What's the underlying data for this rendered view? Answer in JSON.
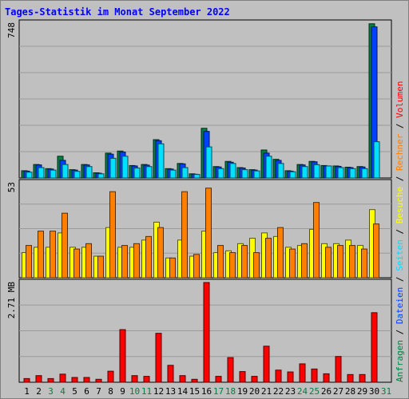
{
  "title": "Tages-Statistik im Monat September 2022",
  "colors": {
    "frame_bg": "#c0c0c0",
    "title": "#0000ff",
    "anfragen": "#008040",
    "dateien": "#0040ff",
    "seiten": "#00e0ff",
    "besuche": "#ffff00",
    "rechner": "#ff8000",
    "volumen": "#ff0000",
    "weekend_label": "#008040",
    "weekday_label": "#000000"
  },
  "chart_data": [
    {
      "type": "bar",
      "panel": "hits",
      "ymax_label": "748",
      "ylim": [
        0,
        748
      ],
      "x": [
        "1",
        "2",
        "3",
        "4",
        "5",
        "6",
        "7",
        "8",
        "9",
        "10",
        "11",
        "12",
        "13",
        "14",
        "15",
        "16",
        "17",
        "18",
        "19",
        "20",
        "21",
        "22",
        "23",
        "24",
        "25",
        "26",
        "27",
        "28",
        "29",
        "30",
        "31"
      ],
      "series": [
        {
          "name": "Anfragen",
          "color": "#008040",
          "values": [
            35,
            65,
            45,
            105,
            40,
            65,
            25,
            120,
            130,
            60,
            65,
            185,
            45,
            70,
            20,
            240,
            55,
            80,
            50,
            40,
            135,
            90,
            35,
            65,
            80,
            60,
            58,
            52,
            55,
            745,
            null
          ]
        },
        {
          "name": "Dateien",
          "color": "#0040ff",
          "values": [
            33,
            63,
            43,
            85,
            38,
            63,
            23,
            115,
            125,
            58,
            62,
            180,
            43,
            68,
            18,
            225,
            53,
            76,
            48,
            38,
            120,
            85,
            33,
            63,
            78,
            58,
            56,
            50,
            53,
            730,
            null
          ]
        },
        {
          "name": "Seiten",
          "color": "#00e0ff",
          "values": [
            28,
            50,
            38,
            65,
            32,
            55,
            20,
            95,
            105,
            48,
            55,
            165,
            38,
            50,
            17,
            150,
            45,
            70,
            40,
            34,
            105,
            70,
            30,
            55,
            64,
            58,
            50,
            45,
            45,
            175,
            null
          ]
        }
      ]
    },
    {
      "type": "bar",
      "panel": "visits",
      "ymax_label": "53",
      "ylim": [
        0,
        53
      ],
      "x": [
        "1",
        "2",
        "3",
        "4",
        "5",
        "6",
        "7",
        "8",
        "9",
        "10",
        "11",
        "12",
        "13",
        "14",
        "15",
        "16",
        "17",
        "18",
        "19",
        "20",
        "21",
        "22",
        "23",
        "24",
        "25",
        "26",
        "27",
        "28",
        "29",
        "30",
        "31"
      ],
      "series": [
        {
          "name": "Besuche",
          "color": "#ffff00",
          "values": [
            14,
            17,
            17,
            25,
            17,
            17,
            12,
            28,
            17,
            17,
            21,
            31,
            11,
            21,
            12,
            26,
            14,
            15,
            19,
            22,
            25,
            23,
            17,
            18,
            27,
            19,
            19,
            21,
            18,
            38,
            null
          ]
        },
        {
          "name": "Rechner",
          "color": "#ff8000",
          "values": [
            18,
            26,
            26,
            36,
            16,
            19,
            12,
            48,
            18,
            19,
            23,
            28,
            11,
            48,
            13,
            50,
            18,
            14,
            18,
            14,
            22,
            28,
            16,
            19,
            42,
            17,
            18,
            18,
            16,
            30,
            null
          ]
        }
      ]
    },
    {
      "type": "bar",
      "panel": "volume",
      "ymax_label": "2.71 MB",
      "ylim": [
        0,
        2.71
      ],
      "x": [
        "1",
        "2",
        "3",
        "4",
        "5",
        "6",
        "7",
        "8",
        "9",
        "10",
        "11",
        "12",
        "13",
        "14",
        "15",
        "16",
        "17",
        "18",
        "19",
        "20",
        "21",
        "22",
        "23",
        "24",
        "25",
        "26",
        "27",
        "28",
        "29",
        "30",
        "31"
      ],
      "series": [
        {
          "name": "Volumen",
          "color": "#ff0000",
          "values": [
            0.1,
            0.18,
            0.1,
            0.22,
            0.13,
            0.13,
            0.08,
            0.3,
            1.43,
            0.18,
            0.16,
            1.33,
            0.46,
            0.18,
            0.08,
            2.71,
            0.16,
            0.67,
            0.29,
            0.16,
            0.98,
            0.33,
            0.28,
            0.5,
            0.36,
            0.23,
            0.7,
            0.21,
            0.21,
            1.89,
            null
          ]
        }
      ]
    }
  ],
  "day_labels": [
    "1",
    "2",
    "3",
    "4",
    "5",
    "6",
    "7",
    "8",
    "9",
    "10",
    "11",
    "12",
    "13",
    "14",
    "15",
    "16",
    "17",
    "18",
    "19",
    "20",
    "21",
    "22",
    "23",
    "24",
    "25",
    "26",
    "27",
    "28",
    "29",
    "30",
    "31"
  ],
  "weekend_days": [
    3,
    4,
    10,
    11,
    17,
    18,
    24,
    25,
    31
  ],
  "legend": [
    {
      "text": "Anfragen",
      "color": "#008040"
    },
    {
      "text": " / ",
      "color": "#000000"
    },
    {
      "text": "Dateien",
      "color": "#0040ff"
    },
    {
      "text": " / ",
      "color": "#000000"
    },
    {
      "text": "Seiten",
      "color": "#00e0ff"
    },
    {
      "text": " / ",
      "color": "#000000"
    },
    {
      "text": "Besuche",
      "color": "#ffff00"
    },
    {
      "text": " / ",
      "color": "#000000"
    },
    {
      "text": "Rechner",
      "color": "#ff8000"
    },
    {
      "text": " / ",
      "color": "#000000"
    },
    {
      "text": "Volumen",
      "color": "#ff0000"
    }
  ]
}
